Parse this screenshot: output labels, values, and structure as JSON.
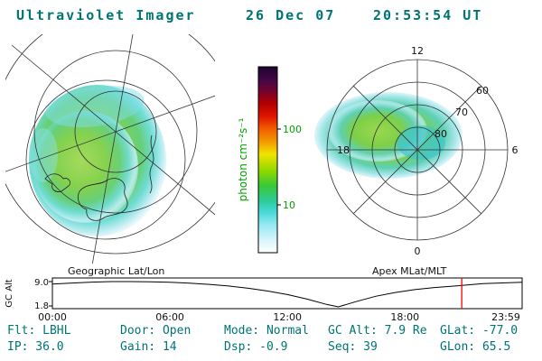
{
  "header": {
    "title": "Ultraviolet Imager",
    "date": "26 Dec 07",
    "time": "20:53:54 UT"
  },
  "colors": {
    "teal_text": "#007474",
    "label_green": "#00a000",
    "marker_red": "#ff0000",
    "aurora_green": "#84d14e",
    "aurora_cyan": "#46c8cf"
  },
  "colorbar": {
    "label": "photon cm⁻²s⁻¹",
    "tick_100": "100",
    "tick_10": "10",
    "scale": "log"
  },
  "panels": {
    "left_caption": "Geographic Lat/Lon",
    "right_caption": "Apex MLat/MLT"
  },
  "polar": {
    "clock_12": "12",
    "clock_18": "18",
    "clock_6": "6",
    "clock_0": "0",
    "ring_60": "60",
    "ring_70": "70",
    "ring_80": "80"
  },
  "strip": {
    "ylabel": "GC Alt",
    "ytick_top": "9.0",
    "ytick_bottom": "1.8",
    "xticks": [
      "00:00",
      "06:00",
      "12:00",
      "18:00",
      "23:59"
    ]
  },
  "status": {
    "row1": [
      "Flt: LBHL",
      "Door: Open",
      "Mode: Normal",
      "GC Alt: 7.9 Re",
      "GLat: -77.0"
    ],
    "row2": [
      "IP: 36.0",
      "Gain: 14",
      "Dsp: -0.9",
      "Seq: 39",
      "GLon: 65.5"
    ]
  },
  "chart_data": [
    {
      "type": "line",
      "title": "Spacecraft geocentric altitude vs UT",
      "xlabel": "UT",
      "ylabel": "GC Alt (Re)",
      "x": [
        0,
        1,
        2,
        3,
        4,
        5,
        6,
        7,
        8,
        9,
        10,
        11,
        12,
        13,
        14,
        14.6,
        15.5,
        16.5,
        17.5,
        18.5,
        19.5,
        20.9,
        22,
        23.98
      ],
      "values": [
        8.3,
        8.6,
        8.85,
        9.0,
        9.0,
        8.95,
        8.8,
        8.55,
        8.2,
        7.75,
        7.1,
        6.3,
        5.3,
        4.0,
        2.5,
        1.8,
        3.3,
        4.8,
        5.9,
        6.7,
        7.3,
        7.9,
        8.4,
        8.8
      ],
      "ylim": [
        1.8,
        9.0
      ],
      "xtick_hours": [
        0,
        6,
        12,
        18,
        23.983
      ],
      "xtick_labels": [
        "00:00",
        "06:00",
        "12:00",
        "18:00",
        "23:59"
      ],
      "ytick_labels": [
        "9.0",
        "1.8"
      ],
      "current_time_hours": 20.9,
      "marker_color": "#ff0000",
      "grid": false
    },
    {
      "type": "heatmap",
      "title": "Geographic Lat/Lon auroral image (southern polar projection)",
      "colorbar_label": "photon cm⁻²s⁻¹",
      "colorbar_ticks": [
        10,
        100
      ],
      "colorbar_scale": "log"
    },
    {
      "type": "heatmap",
      "title": "Apex MLat/MLT auroral image (magnetic polar dial)",
      "rings": [
        80,
        70,
        60
      ],
      "clock_labels": [
        12,
        18,
        6,
        0
      ]
    }
  ]
}
